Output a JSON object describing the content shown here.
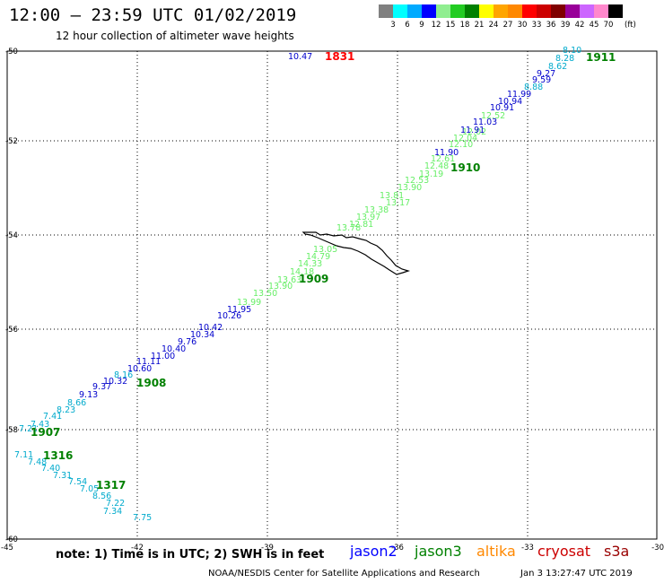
{
  "header": {
    "title": "12:00 – 23:59 UTC 01/02/2019",
    "subtitle": "12 hour collection of altimeter wave heights"
  },
  "colorbar": {
    "unit": "(ft)",
    "colors": [
      "#808080",
      "#00ffff",
      "#00aaff",
      "#0000ff",
      "#90ee90",
      "#22cc22",
      "#008000",
      "#ffff00",
      "#ffa500",
      "#ff8800",
      "#ff0000",
      "#cc0000",
      "#800000",
      "#990099",
      "#cc66ff",
      "#ff88cc",
      "#000000"
    ],
    "labels": [
      "3",
      "6",
      "9",
      "12",
      "15",
      "18",
      "21",
      "24",
      "27",
      "30",
      "33",
      "36",
      "39",
      "42",
      "45",
      "70"
    ]
  },
  "axes": {
    "lat_labels": [
      "-50",
      "-52",
      "-54",
      "-56",
      "-58",
      "-60"
    ],
    "lon_labels": [
      "-45",
      "-42",
      "-39",
      "-36",
      "-33",
      "-30"
    ]
  },
  "pass_labels": [
    {
      "text": "1831",
      "color": "#ff0000"
    },
    {
      "text": "1911",
      "color": "#008000"
    },
    {
      "text": "1910",
      "color": "#008000"
    },
    {
      "text": "1909",
      "color": "#008000"
    },
    {
      "text": "1908",
      "color": "#008000"
    },
    {
      "text": "1907",
      "color": "#008000"
    },
    {
      "text": "1316",
      "color": "#008000"
    },
    {
      "text": "1317",
      "color": "#008000"
    }
  ],
  "observations": [
    {
      "v": "10.47",
      "c": "#0000cc"
    },
    {
      "v": "8.10",
      "c": "#00aacc"
    },
    {
      "v": "8.28",
      "c": "#00aacc"
    },
    {
      "v": "8.62",
      "c": "#00aacc"
    },
    {
      "v": "9.27",
      "c": "#0000cc"
    },
    {
      "v": "9.59",
      "c": "#0000cc"
    },
    {
      "v": "8.88",
      "c": "#00aacc"
    },
    {
      "v": "11.99",
      "c": "#0000cc"
    },
    {
      "v": "10.94",
      "c": "#0000cc"
    },
    {
      "v": "10.91",
      "c": "#0000cc"
    },
    {
      "v": "12.52",
      "c": "#66ee66"
    },
    {
      "v": "11.03",
      "c": "#0000cc"
    },
    {
      "v": "12.02",
      "c": "#66ee66"
    },
    {
      "v": "11.91",
      "c": "#0000cc"
    },
    {
      "v": "12.04",
      "c": "#66ee66"
    },
    {
      "v": "12.10",
      "c": "#66ee66"
    },
    {
      "v": "11.90",
      "c": "#0000cc"
    },
    {
      "v": "12.61",
      "c": "#66ee66"
    },
    {
      "v": "12.48",
      "c": "#66ee66"
    },
    {
      "v": "13.19",
      "c": "#66ee66"
    },
    {
      "v": "12.53",
      "c": "#66ee66"
    },
    {
      "v": "13.90",
      "c": "#66ee66"
    },
    {
      "v": "13.81",
      "c": "#66ee66"
    },
    {
      "v": "13.17",
      "c": "#66ee66"
    },
    {
      "v": "13.38",
      "c": "#66ee66"
    },
    {
      "v": "13.97",
      "c": "#66ee66"
    },
    {
      "v": "12.81",
      "c": "#66ee66"
    },
    {
      "v": "13.78",
      "c": "#66ee66"
    },
    {
      "v": "13.05",
      "c": "#66ee66"
    },
    {
      "v": "14.79",
      "c": "#66ee66"
    },
    {
      "v": "14.33",
      "c": "#66ee66"
    },
    {
      "v": "14.18",
      "c": "#66ee66"
    },
    {
      "v": "13.63",
      "c": "#66ee66"
    },
    {
      "v": "13.90",
      "c": "#66ee66"
    },
    {
      "v": "13.50",
      "c": "#66ee66"
    },
    {
      "v": "13.99",
      "c": "#66ee66"
    },
    {
      "v": "11.95",
      "c": "#0000cc"
    },
    {
      "v": "10.26",
      "c": "#0000cc"
    },
    {
      "v": "10.42",
      "c": "#0000cc"
    },
    {
      "v": "10.34",
      "c": "#0000cc"
    },
    {
      "v": "9.76",
      "c": "#0000cc"
    },
    {
      "v": "10.40",
      "c": "#0000cc"
    },
    {
      "v": "11.00",
      "c": "#0000cc"
    },
    {
      "v": "11.11",
      "c": "#0000cc"
    },
    {
      "v": "10.60",
      "c": "#0000cc"
    },
    {
      "v": "8.16",
      "c": "#00aacc"
    },
    {
      "v": "10.32",
      "c": "#0000cc"
    },
    {
      "v": "9.37",
      "c": "#0000cc"
    },
    {
      "v": "9.13",
      "c": "#0000cc"
    },
    {
      "v": "8.66",
      "c": "#00aacc"
    },
    {
      "v": "8.23",
      "c": "#00aacc"
    },
    {
      "v": "7.41",
      "c": "#00aacc"
    },
    {
      "v": "7.43",
      "c": "#00aacc"
    },
    {
      "v": "7.21",
      "c": "#00aacc"
    },
    {
      "v": "7.11",
      "c": "#00aacc"
    },
    {
      "v": "7.48",
      "c": "#00aacc"
    },
    {
      "v": "7.40",
      "c": "#00aacc"
    },
    {
      "v": "7.31",
      "c": "#00aacc"
    },
    {
      "v": "7.54",
      "c": "#00aacc"
    },
    {
      "v": "7.05",
      "c": "#00aacc"
    },
    {
      "v": "8.56",
      "c": "#00aacc"
    },
    {
      "v": "7.22",
      "c": "#00aacc"
    },
    {
      "v": "7.34",
      "c": "#00aacc"
    },
    {
      "v": "7.75",
      "c": "#00aacc"
    }
  ],
  "footer": {
    "note": "note: 1) Time is in UTC; 2) SWH is in feet",
    "missions": [
      {
        "name": "jason2",
        "color": "#0000ff"
      },
      {
        "name": "jason3",
        "color": "#008000"
      },
      {
        "name": "altika",
        "color": "#ff8800"
      },
      {
        "name": "cryosat",
        "color": "#cc0000"
      },
      {
        "name": "s3a",
        "color": "#990000"
      }
    ],
    "credit": "NOAA/NESDIS Center for Satellite Applications and Research",
    "timestamp": "Jan  3 13:27:47 UTC 2019"
  }
}
